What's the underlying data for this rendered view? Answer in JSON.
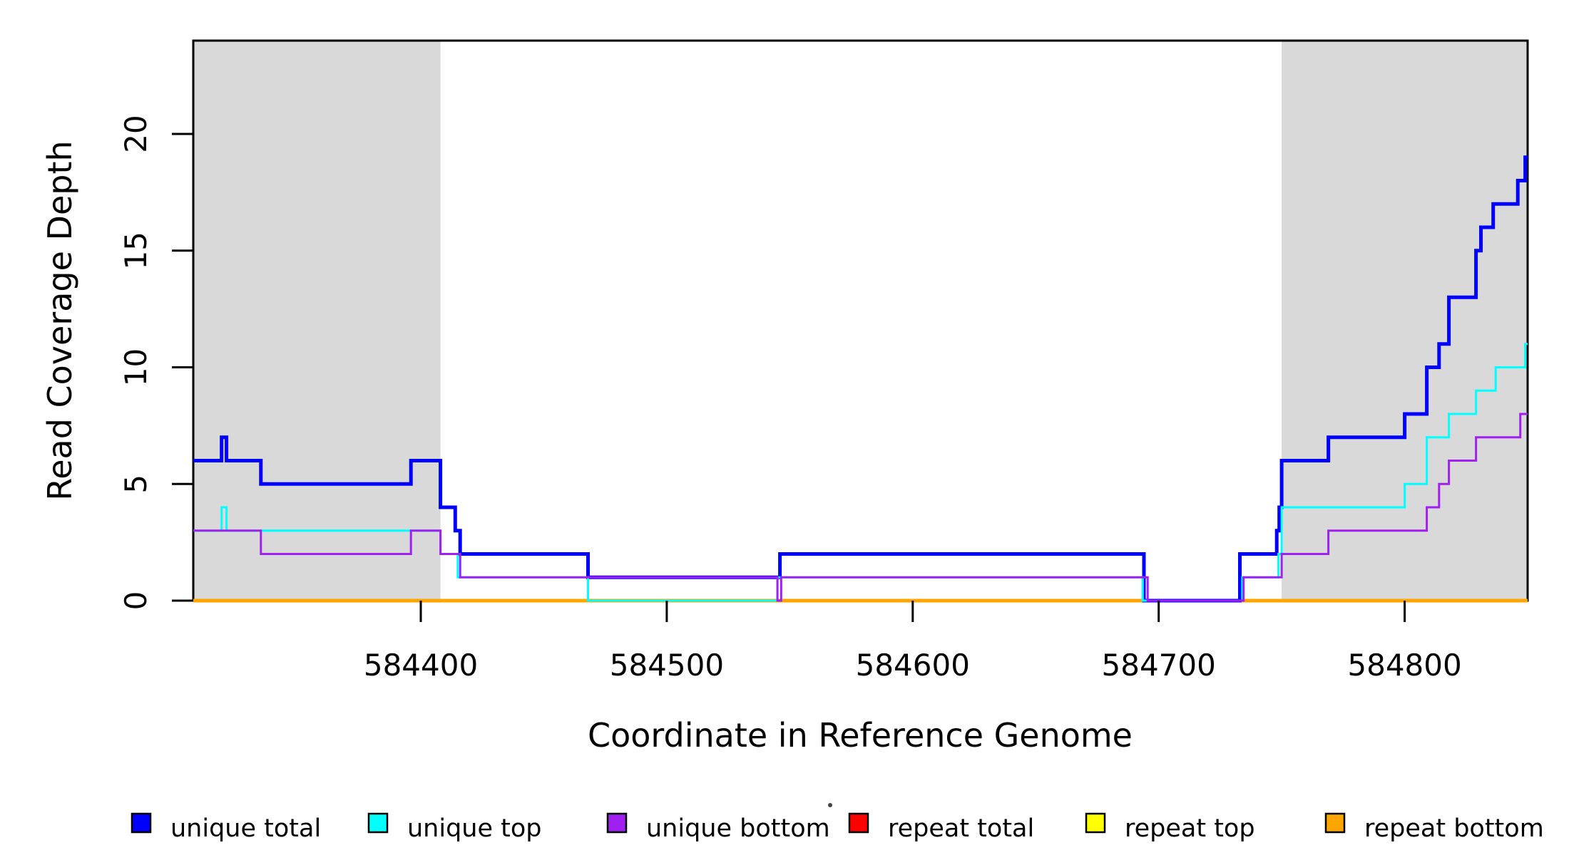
{
  "figure": {
    "background": "#ffffff",
    "band_color": "#d9d9d9",
    "axis_color": "#000000"
  },
  "legend": {
    "items": [
      {
        "label": "unique total",
        "color": "#0000ff"
      },
      {
        "label": "unique top",
        "color": "#00ffff"
      },
      {
        "label": "unique bottom",
        "color": "#a020f0"
      },
      {
        "label": "repeat total",
        "color": "#ff0000"
      },
      {
        "label": "repeat top",
        "color": "#ffff00"
      },
      {
        "label": "repeat bottom",
        "color": "#ffa500"
      }
    ]
  },
  "chart_data": {
    "type": "line",
    "subtype": "step",
    "title": "",
    "xlabel": "Coordinate in Reference Genome",
    "ylabel": "Read Coverage Depth",
    "xlim": [
      584307.5,
      584850
    ],
    "ylim": [
      0,
      24
    ],
    "grid": false,
    "legend_position": "bottom",
    "x_ticks": [
      {
        "v": 584400,
        "label": "584400"
      },
      {
        "v": 584500,
        "label": "584500"
      },
      {
        "v": 584600,
        "label": "584600"
      },
      {
        "v": 584700,
        "label": "584700"
      },
      {
        "v": 584800,
        "label": "584800"
      }
    ],
    "y_ticks": [
      {
        "v": 0,
        "label": "0"
      },
      {
        "v": 5,
        "label": "5"
      },
      {
        "v": 10,
        "label": "10"
      },
      {
        "v": 15,
        "label": "15"
      },
      {
        "v": 20,
        "label": "20"
      }
    ],
    "shaded_regions": [
      {
        "x0": 584307.5,
        "x1": 584408,
        "color": "#d9d9d9"
      },
      {
        "x0": 584750,
        "x1": 584850,
        "color": "#d9d9d9"
      }
    ],
    "series": [
      {
        "name": "repeat total",
        "color": "#ff0000",
        "width": 3,
        "steps": [
          [
            584307.5,
            0
          ]
        ],
        "x_end": 584850
      },
      {
        "name": "repeat top",
        "color": "#ffff00",
        "width": 3,
        "steps": [
          [
            584307.5,
            0
          ]
        ],
        "x_end": 584850
      },
      {
        "name": "repeat bottom",
        "color": "#ffa500",
        "width": 5,
        "steps": [
          [
            584307.5,
            0
          ]
        ],
        "x_end": 584850
      },
      {
        "name": "unique total",
        "color": "#0000ff",
        "width": 5,
        "steps": [
          [
            584307.5,
            6
          ],
          [
            584319,
            7
          ],
          [
            584321,
            6
          ],
          [
            584335,
            5
          ],
          [
            584396,
            6
          ],
          [
            584408,
            4
          ],
          [
            584414,
            3
          ],
          [
            584416,
            2
          ],
          [
            584468,
            1
          ],
          [
            584546,
            2
          ],
          [
            584694,
            0
          ],
          [
            584733,
            2
          ],
          [
            584748,
            3
          ],
          [
            584749,
            4
          ],
          [
            584750,
            6
          ],
          [
            584769,
            7
          ],
          [
            584800,
            8
          ],
          [
            584809,
            10
          ],
          [
            584814,
            11
          ],
          [
            584818,
            13
          ],
          [
            584829,
            15
          ],
          [
            584831,
            16
          ],
          [
            584836,
            17
          ],
          [
            584846,
            18
          ],
          [
            584849,
            19
          ]
        ],
        "x_end": 584850
      },
      {
        "name": "unique top",
        "color": "#00ffff",
        "width": 3,
        "steps": [
          [
            584307.5,
            3
          ],
          [
            584319,
            4
          ],
          [
            584321,
            3
          ],
          [
            584408,
            2
          ],
          [
            584415,
            1
          ],
          [
            584468,
            0
          ],
          [
            584545,
            1
          ],
          [
            584693.5,
            0
          ],
          [
            584734,
            1
          ],
          [
            584748.7,
            2
          ],
          [
            584750,
            4
          ],
          [
            584800,
            5
          ],
          [
            584809,
            7
          ],
          [
            584818,
            8
          ],
          [
            584829,
            9
          ],
          [
            584837,
            10
          ],
          [
            584849,
            11
          ]
        ],
        "x_end": 584850
      },
      {
        "name": "unique bottom",
        "color": "#a020f0",
        "width": 3,
        "steps": [
          [
            584307.5,
            3
          ],
          [
            584335,
            2
          ],
          [
            584396,
            3
          ],
          [
            584408,
            2
          ],
          [
            584416,
            1
          ],
          [
            584545,
            0
          ],
          [
            584546.5,
            1
          ],
          [
            584695.5,
            0
          ],
          [
            584734.5,
            1
          ],
          [
            584750,
            2
          ],
          [
            584769,
            3
          ],
          [
            584809,
            4
          ],
          [
            584814,
            5
          ],
          [
            584818,
            6
          ],
          [
            584829,
            7
          ],
          [
            584847,
            8
          ]
        ],
        "x_end": 584850
      }
    ]
  }
}
